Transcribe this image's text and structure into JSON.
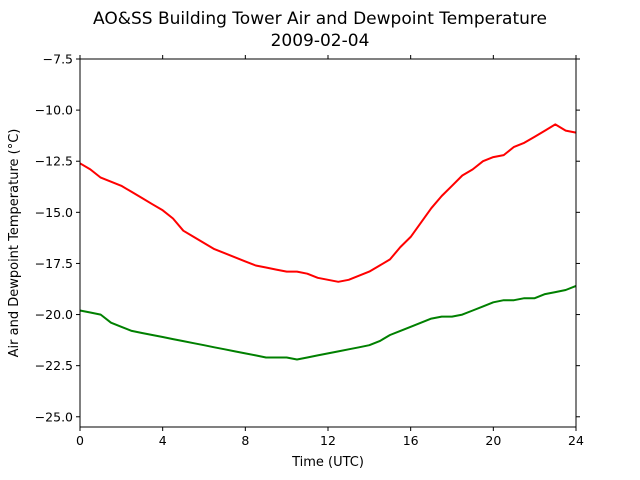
{
  "chart_data": {
    "type": "line",
    "title": "AO&SS Building Tower Air and Dewpoint Temperature",
    "subtitle": "2009-02-04",
    "xlabel": "Time (UTC)",
    "ylabel": "Air and Dewpoint Temperature (°C)",
    "xlim": [
      0,
      24
    ],
    "ylim": [
      -25.5,
      -7.5
    ],
    "xticks": [
      0,
      4,
      8,
      12,
      16,
      20,
      24
    ],
    "xtick_labels": [
      "0",
      "4",
      "8",
      "12",
      "16",
      "20",
      "24"
    ],
    "yticks": [
      -7.5,
      -10.0,
      -12.5,
      -15.0,
      -17.5,
      -20.0,
      -22.5,
      -25.0
    ],
    "ytick_labels": [
      "−7.5",
      "−10.0",
      "−12.5",
      "−15.0",
      "−17.5",
      "−20.0",
      "−22.5",
      "−25.0"
    ],
    "grid": false,
    "legend": false,
    "series": [
      {
        "color": "#ff0000",
        "x": [
          0,
          0.5,
          1,
          1.5,
          2,
          2.5,
          3,
          3.5,
          4,
          4.5,
          5,
          5.5,
          6,
          6.5,
          7,
          7.5,
          8,
          8.5,
          9,
          9.5,
          10,
          10.5,
          11,
          11.5,
          12,
          12.5,
          13,
          13.5,
          14,
          14.5,
          15,
          15.5,
          16,
          16.5,
          17,
          17.5,
          18,
          18.5,
          19,
          19.5,
          20,
          20.5,
          21,
          21.5,
          22,
          22.5,
          23,
          23.5,
          24
        ],
        "y": [
          -12.6,
          -12.9,
          -13.3,
          -13.5,
          -13.7,
          -14.0,
          -14.3,
          -14.6,
          -14.9,
          -15.3,
          -15.9,
          -16.2,
          -16.5,
          -16.8,
          -17.0,
          -17.2,
          -17.4,
          -17.6,
          -17.7,
          -17.8,
          -17.9,
          -17.9,
          -18.0,
          -18.2,
          -18.3,
          -18.4,
          -18.3,
          -18.1,
          -17.9,
          -17.6,
          -17.3,
          -16.7,
          -16.2,
          -15.5,
          -14.8,
          -14.2,
          -13.7,
          -13.2,
          -12.9,
          -12.5,
          -12.3,
          -12.2,
          -11.8,
          -11.6,
          -11.3,
          -11.0,
          -10.7,
          -11.0,
          -11.1
        ]
      },
      {
        "color": "#008000",
        "x": [
          0,
          0.5,
          1,
          1.5,
          2,
          2.5,
          3,
          3.5,
          4,
          4.5,
          5,
          5.5,
          6,
          6.5,
          7,
          7.5,
          8,
          8.5,
          9,
          9.5,
          10,
          10.5,
          11,
          11.5,
          12,
          12.5,
          13,
          13.5,
          14,
          14.5,
          15,
          15.5,
          16,
          16.5,
          17,
          17.5,
          18,
          18.5,
          19,
          19.5,
          20,
          20.5,
          21,
          21.5,
          22,
          22.5,
          23,
          23.5,
          24
        ],
        "y": [
          -19.8,
          -19.9,
          -20.0,
          -20.4,
          -20.6,
          -20.8,
          -20.9,
          -21.0,
          -21.1,
          -21.2,
          -21.3,
          -21.4,
          -21.5,
          -21.6,
          -21.7,
          -21.8,
          -21.9,
          -22.0,
          -22.1,
          -22.1,
          -22.1,
          -22.2,
          -22.1,
          -22.0,
          -21.9,
          -21.8,
          -21.7,
          -21.6,
          -21.5,
          -21.3,
          -21.0,
          -20.8,
          -20.6,
          -20.4,
          -20.2,
          -20.1,
          -20.1,
          -20.0,
          -19.8,
          -19.6,
          -19.4,
          -19.3,
          -19.3,
          -19.2,
          -19.2,
          -19.0,
          -18.9,
          -18.8,
          -18.6
        ]
      }
    ]
  }
}
